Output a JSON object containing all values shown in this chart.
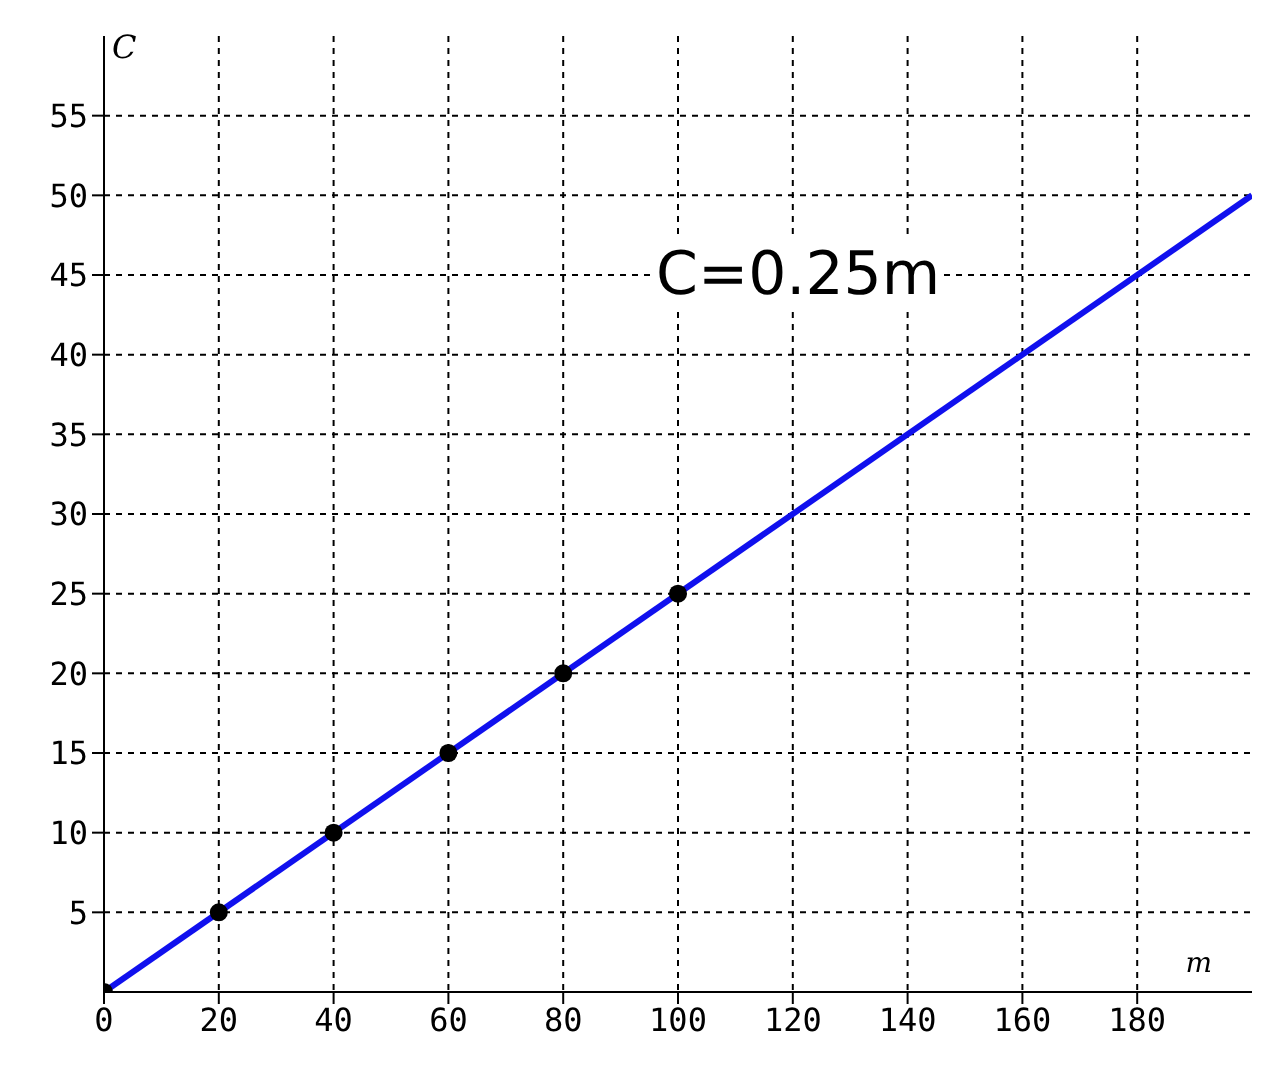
{
  "chart_data": {
    "type": "line",
    "xlabel": "m",
    "ylabel": "C",
    "xlim": [
      0,
      200
    ],
    "ylim": [
      0,
      60
    ],
    "xticks": [
      0,
      20,
      40,
      60,
      80,
      100,
      120,
      140,
      160,
      180
    ],
    "yticks": [
      5,
      10,
      15,
      20,
      25,
      30,
      35,
      40,
      45,
      50,
      55
    ],
    "grid": true,
    "series": [
      {
        "color": "#1010ee",
        "x": [
          0,
          200
        ],
        "values": [
          0,
          50
        ],
        "marker": "none",
        "line_style": "solid"
      },
      {
        "type": "scatter",
        "color": "#000000",
        "x": [
          0,
          20,
          40,
          60,
          80,
          100
        ],
        "values": [
          0,
          5,
          10,
          15,
          20,
          25
        ],
        "marker": "circle"
      }
    ],
    "annotations": [
      "C=0.25m"
    ]
  }
}
